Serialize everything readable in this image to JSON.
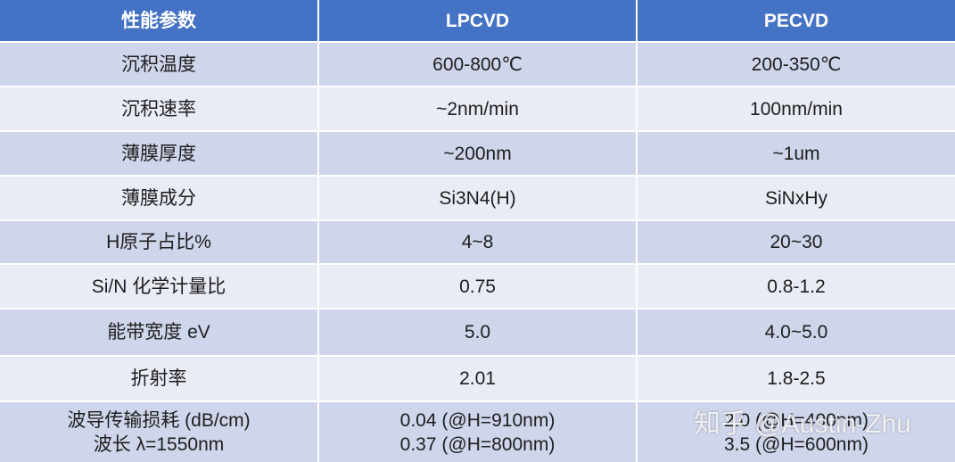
{
  "table": {
    "header": [
      "性能参数",
      "LPCVD",
      "PECVD"
    ],
    "rows": [
      [
        "沉积温度",
        "600-800℃",
        "200-350℃"
      ],
      [
        "沉积速率",
        "~2nm/min",
        "100nm/min"
      ],
      [
        "薄膜厚度",
        "~200nm",
        "~1um"
      ],
      [
        "薄膜成分",
        "Si3N4(H)",
        "SiNxHy"
      ],
      [
        "H原子占比%",
        "4~8",
        "20~30"
      ],
      [
        "Si/N 化学计量比",
        "0.75",
        "0.8-1.2"
      ],
      [
        "能带宽度 eV",
        "5.0",
        "4.0~5.0"
      ],
      [
        "折射率",
        "2.01",
        "1.8-2.5"
      ],
      [
        "波导传输损耗 (dB/cm)\n波长 λ=1550nm",
        "0.04 (@H=910nm)\n0.37 (@H=800nm)",
        "2.0 (@H=400nm)\n3.5 (@H=600nm)"
      ]
    ]
  },
  "watermark": "知乎 @Austin-Zhu"
}
